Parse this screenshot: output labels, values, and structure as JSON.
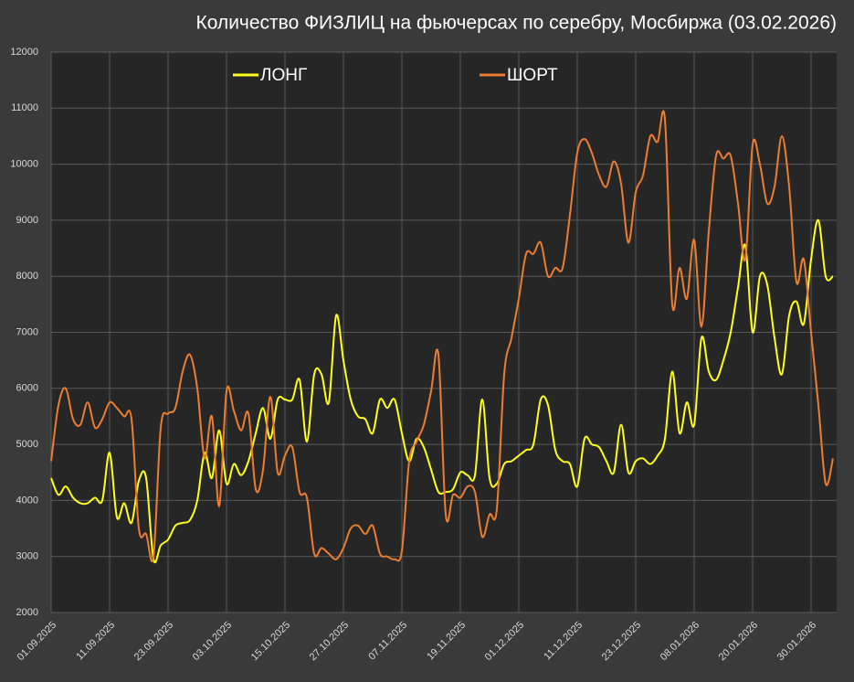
{
  "chart_data": {
    "type": "line",
    "title": "Количество ФИЗЛИЦ на фьючерсах по серебру, Мосбиржа (03.02.2026)",
    "categories": [
      "01.09.2025",
      null,
      null,
      null,
      null,
      null,
      null,
      null,
      "11.09.2025",
      null,
      null,
      null,
      null,
      null,
      null,
      null,
      "23.09.2025",
      null,
      null,
      null,
      null,
      null,
      null,
      null,
      "03.10.2025",
      null,
      null,
      null,
      null,
      null,
      null,
      null,
      "15.10.2025",
      null,
      null,
      null,
      null,
      null,
      null,
      null,
      "27.10.2025",
      null,
      null,
      null,
      null,
      null,
      null,
      null,
      "07.11.2025",
      null,
      null,
      null,
      null,
      null,
      null,
      null,
      "19.11.2025",
      null,
      null,
      null,
      null,
      null,
      null,
      null,
      "01.12.2025",
      null,
      null,
      null,
      null,
      null,
      null,
      null,
      "11.12.2025",
      null,
      null,
      null,
      null,
      null,
      null,
      null,
      "23.12.2025",
      null,
      null,
      null,
      null,
      null,
      null,
      null,
      "08.01.2026",
      null,
      null,
      null,
      null,
      null,
      null,
      null,
      "20.01.2026",
      null,
      null,
      null,
      null,
      null,
      null,
      null,
      "30.01.2026",
      null,
      null,
      null
    ],
    "series": [
      {
        "name": "ЛОНГ",
        "color": "#ffff1a",
        "values": [
          4400,
          4100,
          4250,
          4050,
          3950,
          3950,
          4050,
          4000,
          4850,
          3700,
          3950,
          3600,
          4350,
          4400,
          2950,
          3200,
          3300,
          3550,
          3600,
          3650,
          4000,
          4850,
          4400,
          5250,
          4300,
          4650,
          4450,
          4700,
          5200,
          5650,
          5100,
          5800,
          5800,
          5800,
          6150,
          5050,
          6250,
          6250,
          5750,
          7300,
          6500,
          5800,
          5500,
          5450,
          5200,
          5800,
          5650,
          5800,
          5200,
          4700,
          5100,
          4950,
          4550,
          4150,
          4150,
          4200,
          4500,
          4450,
          4450,
          5800,
          4400,
          4300,
          4650,
          4700,
          4800,
          4900,
          5000,
          5800,
          5700,
          4900,
          4700,
          4650,
          4250,
          5100,
          5000,
          4950,
          4700,
          4500,
          5350,
          4500,
          4700,
          4750,
          4650,
          4800,
          5100,
          6300,
          5200,
          5750,
          5350,
          6900,
          6300,
          6150,
          6500,
          7000,
          7800,
          8550,
          7000,
          8000,
          7850,
          6900,
          6250,
          7300,
          7550,
          7150,
          8300,
          9000,
          8000,
          8000
        ]
      },
      {
        "name": "ШОРТ",
        "color": "#ed7d31",
        "values": [
          4700,
          5700,
          6000,
          5450,
          5350,
          5750,
          5300,
          5450,
          5750,
          5650,
          5500,
          5450,
          3500,
          3400,
          3000,
          5300,
          5550,
          5650,
          6300,
          6600,
          6000,
          4750,
          5500,
          3900,
          5950,
          5600,
          5250,
          5550,
          4200,
          4550,
          5850,
          4500,
          4800,
          4950,
          4150,
          4050,
          3050,
          3150,
          3050,
          2950,
          3150,
          3500,
          3550,
          3400,
          3550,
          3050,
          3000,
          2950,
          3100,
          4700,
          5050,
          5350,
          5950,
          6600,
          3750,
          4100,
          4050,
          4250,
          4150,
          3350,
          3750,
          3850,
          6250,
          6900,
          7600,
          8400,
          8400,
          8600,
          8000,
          8150,
          8150,
          9100,
          10200,
          10450,
          10200,
          9800,
          9600,
          10050,
          9650,
          8600,
          9500,
          9800,
          10500,
          10400,
          10800,
          7500,
          8150,
          7600,
          8650,
          7100,
          8800,
          10150,
          10100,
          10150,
          9300,
          8300,
          10350,
          10000,
          9300,
          9600,
          10500,
          9600,
          7900,
          8300,
          7000,
          5700,
          4300,
          4750
        ]
      }
    ],
    "ylim": [
      2000,
      12000
    ],
    "yticks": [
      2000,
      3000,
      4000,
      5000,
      6000,
      7000,
      8000,
      9000,
      10000,
      11000,
      12000
    ],
    "grid": true,
    "legend": "top"
  }
}
